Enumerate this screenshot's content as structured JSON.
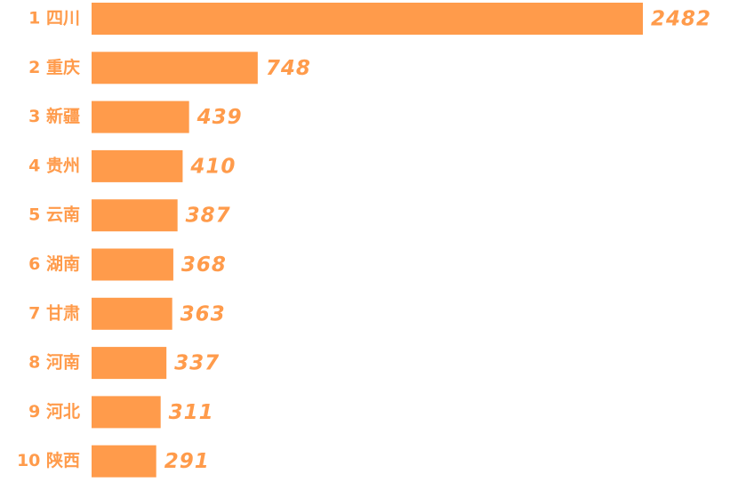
{
  "chart_data": {
    "type": "bar",
    "orientation": "horizontal",
    "categories": [
      "1 四川",
      "2 重庆",
      "3 新疆",
      "4 贵州",
      "5 云南",
      "6 湖南",
      "7 甘肃",
      "8 河南",
      "9 河北",
      "10 陕西"
    ],
    "values": [
      2482,
      748,
      439,
      410,
      387,
      368,
      363,
      337,
      311,
      291
    ],
    "color": "#ff9b4b"
  }
}
